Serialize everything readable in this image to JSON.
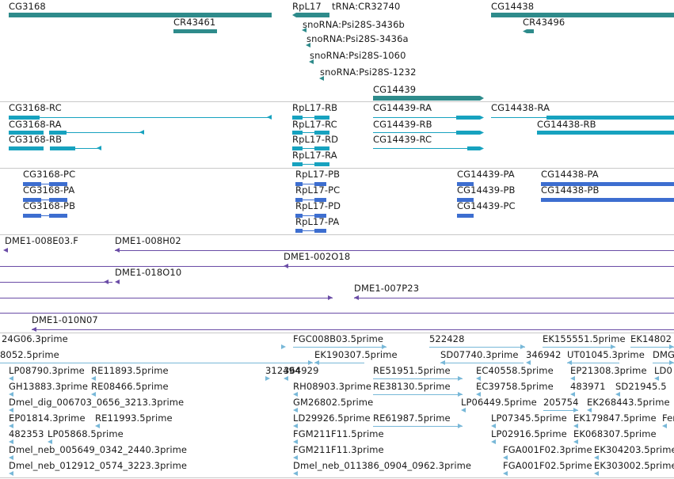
{
  "colors": {
    "gene": "#2e8b8b",
    "transcript": "#17a2bf",
    "protein": "#3d6ed0",
    "clone": "#6a4ca6",
    "est": "#78b8d8",
    "separator": "#c8c8c8",
    "background": "#ffffff"
  },
  "gene_labels": [
    "CG3168",
    "CR43461",
    "RpL17",
    "tRNA:CR32740",
    "CG14438",
    "CR43496",
    "snoRNA:Psi28S-3436b",
    "snoRNA:Psi28S-3436a",
    "snoRNA:Psi28S-1060",
    "snoRNA:Psi28S-1232",
    "CG14439"
  ],
  "transcript_labels": [
    "CG3168-RC",
    "CG3168-RA",
    "CG3168-RB",
    "RpL17-RB",
    "RpL17-RC",
    "RpL17-RD",
    "RpL17-RA",
    "CG14439-RA",
    "CG14439-RB",
    "CG14439-RC",
    "CG14438-RA",
    "CG14438-RB"
  ],
  "protein_labels": [
    "CG3168-PC",
    "CG3168-PA",
    "CG3168-PB",
    "RpL17-PB",
    "RpL17-PC",
    "RpL17-PD",
    "RpL17-PA",
    "CG14439-PA",
    "CG14439-PB",
    "CG14439-PC",
    "CG14438-PA",
    "CG14438-PB"
  ],
  "clone_labels": [
    "DME1-008E03.F",
    "DME1-008H02",
    "DME1-002O18",
    "DME1-018O10",
    "DME1-007P23",
    "DME1-010N07"
  ],
  "est_labels": [
    "24G06.3prime",
    "FGC008B03.5prime",
    "522428",
    "EK155551.5prime",
    "EK14802",
    "8052.5prime",
    "EK190307.5prime",
    "SD07740.3prime",
    "346942",
    "UT01045.3prime",
    "DMG",
    "LP08790.3prime",
    "RE11893.5prime",
    "312494",
    "364929",
    "RE51951.5prime",
    "EC40558.5prime",
    "EP21308.3prime",
    "LD0",
    "GH13883.3prime",
    "RE08466.5prime",
    "RH08903.3prime",
    "RE38130.5prime",
    "EC39758.5prime",
    "483971",
    "SD21945.5",
    "Dmel_dig_006703_0656_3213.3prime",
    "GM26802.5prime",
    "LP06449.5prime",
    "205754",
    "EK268443.5prime",
    "EP01814.3prime",
    "RE11993.5prime",
    "LD29926.5prime",
    "RE61987.5prime",
    "LP07345.5prime",
    "EK179847.5prime",
    "Fer",
    "482353",
    "LP05868.5prime",
    "FGM211F11.5prime",
    "LP02916.5prime",
    "EK068307.5prime",
    "Dmel_neb_005649_0342_2440.3prime",
    "FGM211F11.3prime",
    "FGA001F02.3prime",
    "EK304203.5prime",
    "Dmel_neb_012912_0574_3223.3prime",
    "Dmel_neb_011386_0904_0962.3prime",
    "FGA001F02.5prime",
    "EK303002.5prime"
  ]
}
